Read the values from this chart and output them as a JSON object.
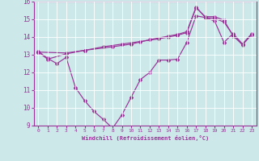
{
  "bg_color": "#cce8e8",
  "line_color": "#993399",
  "xlabel": "Windchill (Refroidissement éolien,°C)",
  "xlim": [
    -0.5,
    23.5
  ],
  "ylim": [
    9,
    16
  ],
  "yticks": [
    9,
    10,
    11,
    12,
    13,
    14,
    15,
    16
  ],
  "xticks": [
    0,
    1,
    2,
    3,
    4,
    5,
    6,
    7,
    8,
    9,
    10,
    11,
    12,
    13,
    14,
    15,
    16,
    17,
    18,
    19,
    20,
    21,
    22,
    23
  ],
  "line1_x": [
    0,
    1,
    2,
    3,
    4,
    5,
    6,
    7,
    8,
    9,
    10,
    11,
    12,
    13,
    14,
    15,
    16,
    17,
    18,
    19,
    20,
    21,
    22,
    23
  ],
  "line1_y": [
    13.2,
    12.8,
    12.5,
    12.85,
    11.15,
    10.4,
    9.8,
    9.35,
    8.85,
    9.6,
    10.6,
    11.6,
    12.0,
    12.7,
    12.7,
    12.75,
    13.7,
    15.2,
    15.1,
    14.9,
    13.7,
    14.2,
    13.6,
    14.2
  ],
  "line2_x": [
    0,
    1,
    3,
    5,
    7,
    9,
    11,
    13,
    14,
    15,
    16,
    17,
    18,
    19,
    20,
    21,
    22,
    23
  ],
  "line2_y": [
    13.15,
    12.75,
    13.05,
    13.25,
    13.45,
    13.6,
    13.75,
    13.9,
    14.0,
    14.1,
    14.25,
    15.65,
    15.15,
    15.15,
    14.95,
    14.05,
    13.6,
    14.15
  ],
  "line3_x": [
    0,
    3,
    5,
    8,
    10,
    12,
    14,
    15,
    16,
    17,
    18,
    19,
    20,
    21,
    22,
    23
  ],
  "line3_y": [
    13.15,
    13.1,
    13.25,
    13.45,
    13.6,
    13.85,
    14.05,
    14.15,
    14.3,
    15.7,
    15.1,
    15.05,
    14.85,
    14.1,
    13.55,
    14.15
  ]
}
